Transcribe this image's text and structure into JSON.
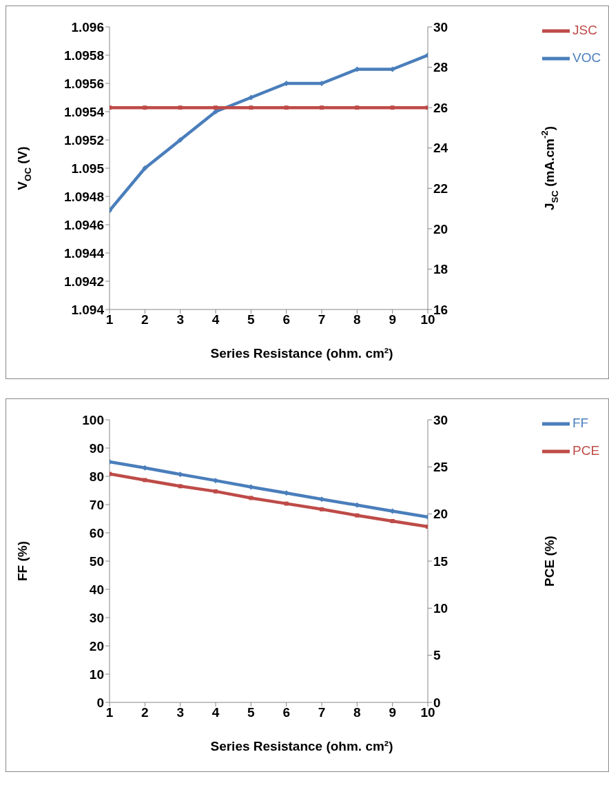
{
  "chart_data": [
    {
      "type": "line",
      "xlabel": "Series Resistance (ohm. cm²)",
      "ylabel": "V$_{OC}$ (V)",
      "y2label": "J$_{SC}$ (mA.cm$^{-2}$)",
      "x": [
        1,
        2,
        3,
        4,
        5,
        6,
        7,
        8,
        9,
        10
      ],
      "xlim": [
        1,
        10
      ],
      "xticks": [
        1,
        2,
        3,
        4,
        5,
        6,
        7,
        8,
        9,
        10
      ],
      "ylim": [
        1.094,
        1.096
      ],
      "yticks": [
        1.094,
        1.0942,
        1.0944,
        1.0946,
        1.0948,
        1.095,
        1.0952,
        1.0954,
        1.0956,
        1.0958,
        1.096
      ],
      "y2lim": [
        16,
        30
      ],
      "y2ticks": [
        16,
        18,
        20,
        22,
        24,
        26,
        28,
        30
      ],
      "legend": "top right",
      "series": [
        {
          "name": "VOC",
          "color": "#4a7ebb",
          "marker": "diamond",
          "values": [
            1.0947,
            1.095,
            1.0952,
            1.0954,
            1.0955,
            1.0956,
            1.0956,
            1.0957,
            1.0957,
            1.0958
          ]
        },
        {
          "name": "JSC",
          "color": "#be4b48",
          "marker": "square",
          "axis": "y2",
          "values": [
            26,
            26,
            26,
            26,
            26,
            26,
            26,
            26,
            26,
            26
          ]
        }
      ]
    },
    {
      "type": "line",
      "xlabel": "Series Resistance (ohm. cm²)",
      "ylabel": "FF (%)",
      "y2label": "PCE (%)",
      "x": [
        1,
        2,
        3,
        4,
        5,
        6,
        7,
        8,
        9,
        10
      ],
      "xlim": [
        1,
        10
      ],
      "xticks": [
        1,
        2,
        3,
        4,
        5,
        6,
        7,
        8,
        9,
        10
      ],
      "ylim": [
        0,
        100
      ],
      "yticks": [
        0,
        10,
        20,
        30,
        40,
        50,
        60,
        70,
        80,
        90,
        100
      ],
      "y2lim": [
        0,
        30
      ],
      "y2ticks": [
        0,
        5,
        10,
        15,
        20,
        25,
        30
      ],
      "legend": "top right",
      "series": [
        {
          "name": "FF",
          "color": "#4a7ebb",
          "marker": "diamond",
          "values": [
            85.1,
            83.0,
            80.7,
            78.5,
            76.2,
            74.1,
            71.9,
            69.8,
            67.7,
            65.6
          ]
        },
        {
          "name": "PCE",
          "color": "#be4b48",
          "marker": "square",
          "axis": "y2",
          "values": [
            24.25,
            23.6,
            22.95,
            22.4,
            21.7,
            21.1,
            20.5,
            19.85,
            19.25,
            18.65
          ]
        }
      ]
    }
  ]
}
